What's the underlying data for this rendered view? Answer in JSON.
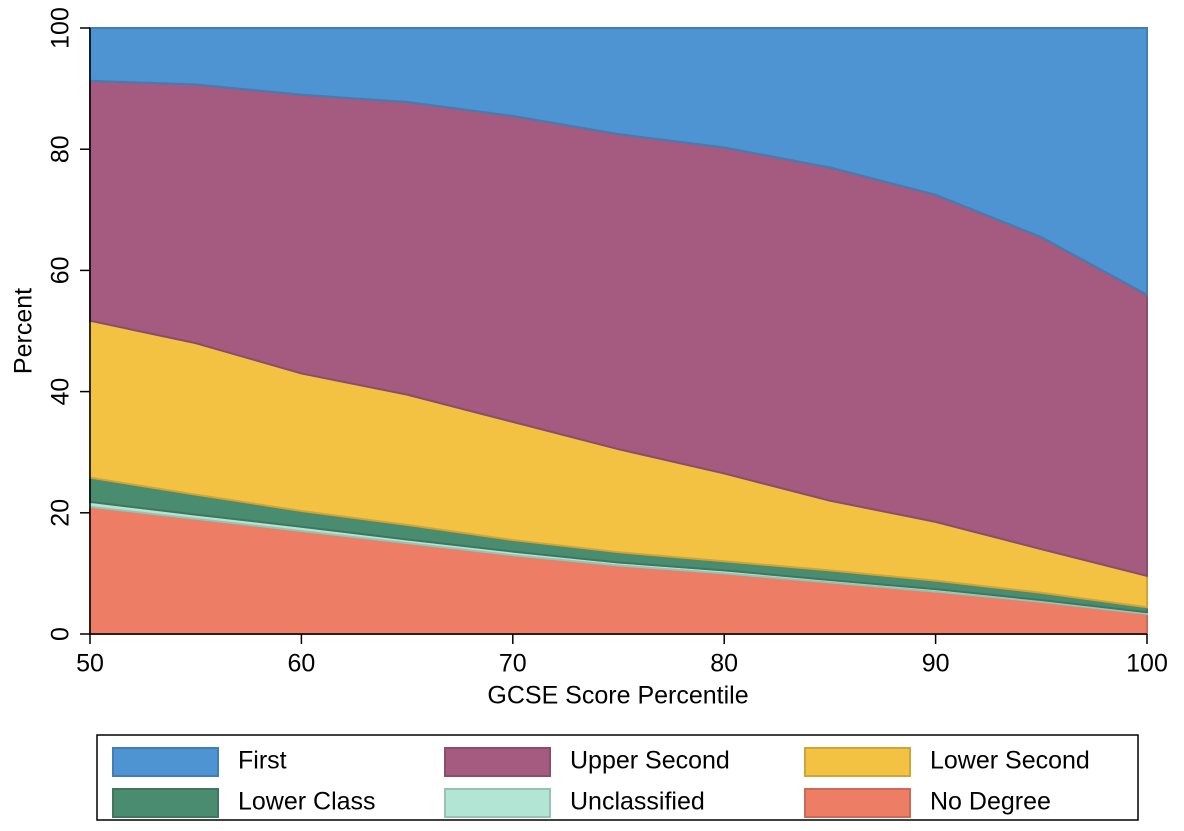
{
  "chart_data": {
    "type": "stacked-area",
    "x_label": "GCSE Score Percentile",
    "y_label": "Percent",
    "x": [
      50,
      55,
      60,
      65,
      70,
      75,
      80,
      85,
      90,
      95,
      100
    ],
    "series": [
      {
        "name": "First",
        "color": "#4e94d3",
        "values": [
          8.7,
          9.3,
          11,
          12.2,
          14.5,
          17.5,
          19.7,
          23,
          27.5,
          34.5,
          44
        ]
      },
      {
        "name": "Upper Second",
        "color": "#a45b7f",
        "values": [
          39.6,
          42.7,
          46,
          48.3,
          50.5,
          52,
          53.8,
          55,
          54,
          51.5,
          46.4
        ]
      },
      {
        "name": "Lower Second",
        "color": "#f4c242",
        "values": [
          25.9,
          25,
          22.7,
          21.5,
          19.5,
          17,
          14.5,
          11.5,
          9.7,
          7.2,
          5.2
        ]
      },
      {
        "name": "Lower Class",
        "color": "#4a8c6f",
        "values": [
          4,
          3.3,
          2.6,
          2.4,
          1.9,
          1.7,
          1.5,
          1.6,
          1.4,
          1.2,
          0.8
        ]
      },
      {
        "name": "Unclassified",
        "color": "#b2e5d4",
        "values": [
          0.8,
          0.7,
          0.7,
          0.6,
          0.6,
          0.5,
          0.5,
          0.4,
          0.4,
          0.3,
          0.3
        ]
      },
      {
        "name": "No Degree",
        "color": "#ee7d66",
        "values": [
          21,
          19,
          17,
          15,
          13,
          11.3,
          10,
          8.5,
          7,
          5.3,
          3.3
        ]
      }
    ],
    "xlim": [
      50,
      100
    ],
    "xticks": [
      50,
      60,
      70,
      80,
      90,
      100
    ],
    "ylim": [
      0,
      100
    ],
    "yticks": [
      0,
      20,
      40,
      60,
      80,
      100
    ]
  }
}
